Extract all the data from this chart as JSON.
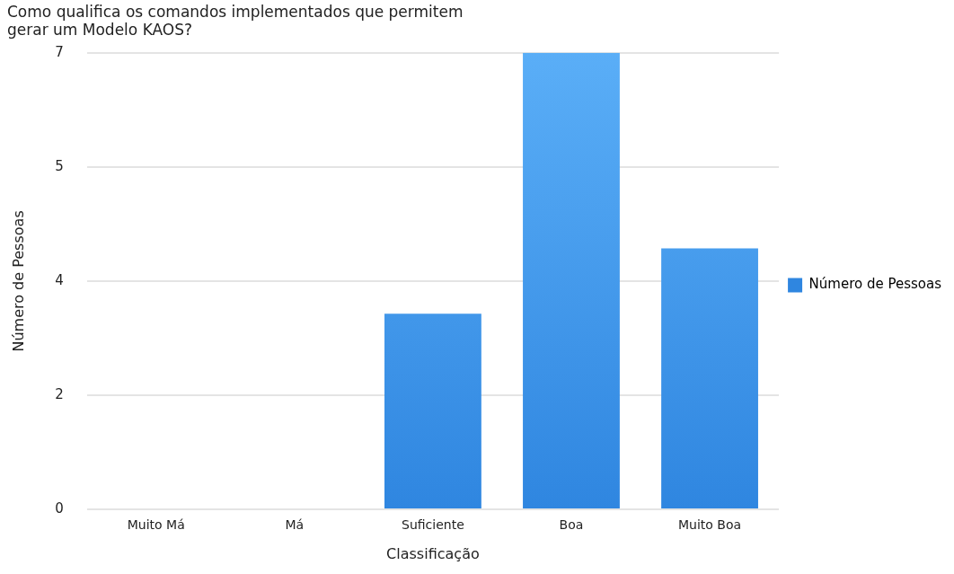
{
  "chart_data": {
    "type": "bar",
    "title": "Como qualifica os comandos implementados que permitem\ngerar um Modelo KAOS?",
    "xlabel": "Classificação",
    "ylabel": "Número de Pessoas",
    "categories": [
      "Muito Má",
      "Má",
      "Suficiente",
      "Boa",
      "Muito Boa"
    ],
    "series": [
      {
        "name": "Número de Pessoas",
        "color": "#2f86e0",
        "values": [
          0,
          0,
          3,
          7,
          4
        ]
      }
    ],
    "ylim": [
      0,
      7
    ],
    "yticks": [
      0,
      {
        "value": 1.75,
        "label": "2"
      },
      {
        "value": 3.5,
        "label": "4"
      },
      {
        "value": 5.25,
        "label": "5"
      },
      7
    ],
    "grid": "y",
    "legend": "right"
  }
}
